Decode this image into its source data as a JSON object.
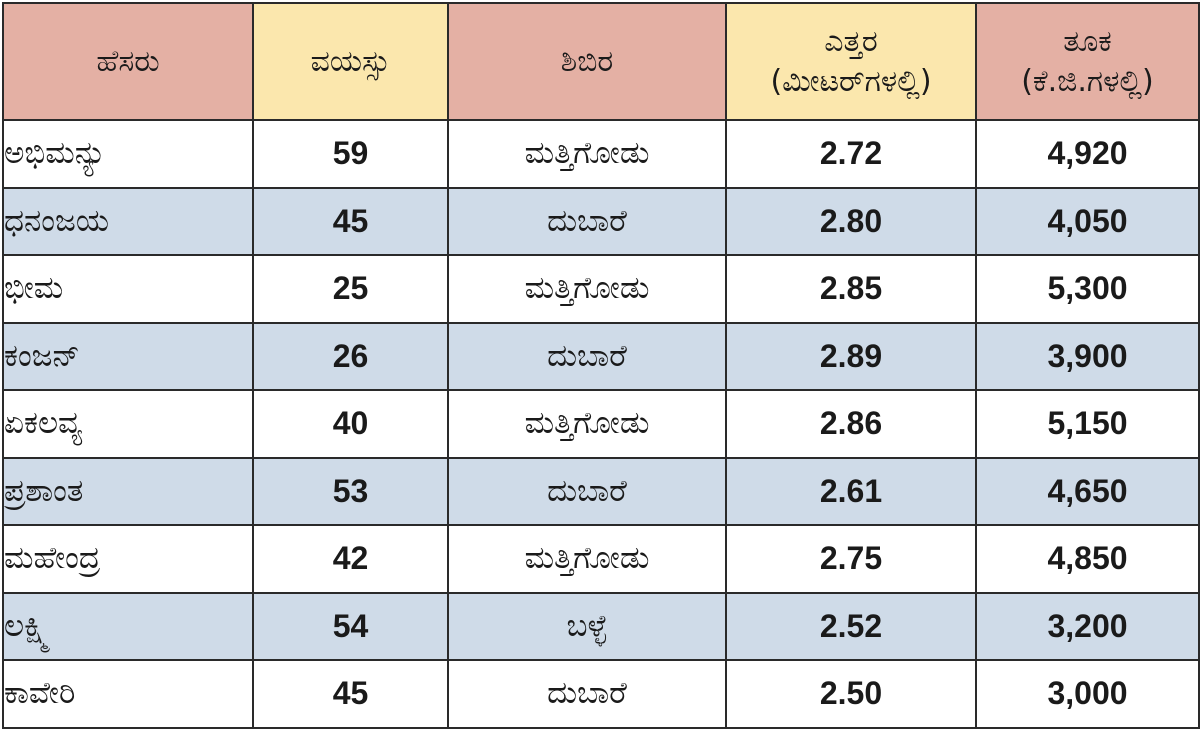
{
  "table": {
    "headers": {
      "name": "ಹೆಸರು",
      "age": "ವಯಸ್ಸು",
      "camp": "ಶಿಬಿರ",
      "height_line1": "ಎತ್ತರ",
      "height_line2": "(ಮೀಟರ್‌ಗಳಲ್ಲಿ)",
      "weight_line1": "ತೂಕ",
      "weight_line2": "(ಕೆ.ಜಿ.ಗಳಲ್ಲಿ)"
    },
    "rows": [
      {
        "name": "ಅಭಿಮನ್ಯು",
        "age": "59",
        "camp": "ಮತ್ತಿಗೋಡು",
        "height": "2.72",
        "weight": "4,920"
      },
      {
        "name": "ಧನಂಜಯ",
        "age": "45",
        "camp": "ದುಬಾರೆ",
        "height": "2.80",
        "weight": "4,050"
      },
      {
        "name": "ಭೀಮ",
        "age": "25",
        "camp": "ಮತ್ತಿಗೋಡು",
        "height": "2.85",
        "weight": "5,300"
      },
      {
        "name": "ಕಂಜನ್",
        "age": "26",
        "camp": "ದುಬಾರೆ",
        "height": "2.89",
        "weight": "3,900"
      },
      {
        "name": "ಏಕಲವ್ಯ",
        "age": "40",
        "camp": "ಮತ್ತಿಗೋಡು",
        "height": "2.86",
        "weight": "5,150"
      },
      {
        "name": "ಪ್ರಶಾಂತ",
        "age": "53",
        "camp": "ದುಬಾರೆ",
        "height": "2.61",
        "weight": "4,650"
      },
      {
        "name": "ಮಹೇಂದ್ರ",
        "age": "42",
        "camp": "ಮತ್ತಿಗೋಡು",
        "height": "2.75",
        "weight": "4,850"
      },
      {
        "name": "ಲಕ್ಷ್ಮಿ",
        "age": "54",
        "camp": "ಬಳ್ಳೆ",
        "height": "2.52",
        "weight": "3,200"
      },
      {
        "name": "ಕಾವೇರಿ",
        "age": "45",
        "camp": "ದುಬಾರೆ",
        "height": "2.50",
        "weight": "3,000"
      }
    ]
  },
  "colors": {
    "header_pink": "#e4b0a4",
    "header_yellow": "#fbe7ad",
    "row_alt": "#cfdbe8",
    "border": "#2a2a2a"
  }
}
